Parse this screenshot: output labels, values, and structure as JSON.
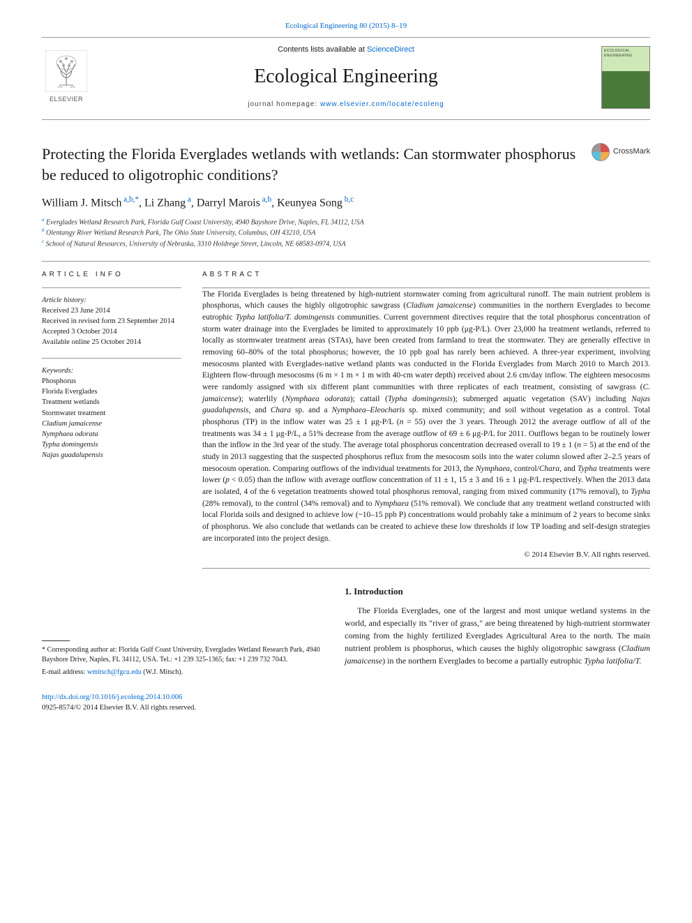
{
  "journal_ref": "Ecological Engineering 80 (2015) 8–19",
  "masthead": {
    "contents_prefix": "Contents lists available at ",
    "contents_link": "ScienceDirect",
    "journal_title": "Ecological Engineering",
    "homepage_prefix": "journal homepage: ",
    "homepage_url": "www.elsevier.com/locate/ecoleng",
    "publisher": "ELSEVIER",
    "cover_label_top": "ECOLOGICAL",
    "cover_label_bottom": "ENGINEERING"
  },
  "crossmark_label": "CrossMark",
  "article": {
    "title": "Protecting the Florida Everglades wetlands with wetlands: Can stormwater phosphorus be reduced to oligotrophic conditions?",
    "authors_html": "William J. Mitsch<sup> a,b,*</sup>, Li Zhang<sup> a</sup>, Darryl Marois<sup> a,b</sup>, Keunyea Song<sup> b,c</sup>",
    "affiliations": [
      {
        "marker": "a",
        "text": "Everglades Wetland Research Park, Florida Gulf Coast University, 4940 Bayshore Drive, Naples, FL 34112, USA"
      },
      {
        "marker": "b",
        "text": "Olentangy River Wetland Research Park, The Ohio State University, Columbus, OH 43210, USA"
      },
      {
        "marker": "c",
        "text": "School of Natural Resources, University of Nebraska, 3310 Holdrege Street, Lincoln, NE 68583-0974, USA"
      }
    ]
  },
  "info": {
    "heading": "ARTICLE INFO",
    "history_label": "Article history:",
    "history": [
      "Received 23 June 2014",
      "Received in revised form 23 September 2014",
      "Accepted 3 October 2014",
      "Available online 25 October 2014"
    ],
    "keywords_label": "Keywords:",
    "keywords": [
      "Phosphorus",
      "Florida Everglades",
      "Treatment wetlands",
      "Stormwater treatment",
      "Cladium jamaicense",
      "Nymphaea odorata",
      "Typha domingensis",
      "Najas guadalupensis"
    ]
  },
  "abstract": {
    "heading": "ABSTRACT",
    "body_html": "The Florida Everglades is being threatened by high-nutrient stormwater coming from agricultural runoff. The main nutrient problem is phosphorus, which causes the highly oligotrophic sawgrass (<em>Cladium jamaicense</em>) communities in the northern Everglades to become eutrophic <em>Typha latifolia/T. domingensis</em> communities. Current government directives require that the total phosphorus concentration of storm water drainage into the Everglades be limited to approximately 10 ppb (μg-P/L). Over 23,000 ha treatment wetlands, referred to locally as stormwater treatment areas (STAs), have been created from farmland to treat the stormwater. They are generally effective in removing 60–80% of the total phosphorus; however, the 10 ppb goal has rarely been achieved. A three-year experiment, involving mesocosms planted with Everglades-native wetland plants was conducted in the Florida Everglades from March 2010 to March 2013. Eighteen flow-through mesocosms (6 m × 1 m × 1 m with 40-cm water depth) received about 2.6 cm/day inflow. The eighteen mesocosms were randomly assigned with six different plant communities with three replicates of each treatment, consisting of sawgrass (<em>C. jamaicense</em>); waterlily (<em>Nymphaea odorata</em>); cattail (<em>Typha domingensis</em>); submerged aquatic vegetation (SAV) including <em>Najas guadalupensis</em>, and <em>Chara</em> sp. and a <em>Nymphaea–Eleocharis</em> sp. mixed community; and soil without vegetation as a control. Total phosphorus (TP) in the inflow water was 25 ± 1 μg-P/L (<em>n</em> = 55) over the 3 years. Through 2012 the average outflow of all of the treatments was 34 ± 1 μg-P/L, a 51% decrease from the average outflow of 69 ± 6 μg-P/L for 2011. Outflows began to be routinely lower than the inflow in the 3rd year of the study. The average total phosphorus concentration decreased overall to 19 ± 1 (<em>n</em> = 5) at the end of the study in 2013 suggesting that the suspected phosphorus reflux from the mesocosm soils into the water column slowed after 2–2.5 years of mesocosm operation. Comparing outflows of the individual treatments for 2013, the <em>Nymphaea</em>, control/<em>Chara</em>, and <em>Typha</em> treatments were lower (<em>p</em> < 0.05) than the inflow with average outflow concentration of 11 ± 1, 15 ± 3 and 16 ± 1 μg-P/L respectively. When the 2013 data are isolated, 4 of the 6 vegetation treatments showed total phosphorus removal, ranging from mixed community (17% removal), to <em>Typha</em> (28% removal), to the control (34% removal) and to <em>Nymphaea</em> (51% removal). We conclude that any treatment wetland constructed with local Florida soils and designed to achieve low (~10–15 ppb P) concentrations would probably take a minimum of 2 years to become sinks of phosphorus. We also conclude that wetlands can be created to achieve these low thresholds if low TP loading and self-design strategies are incorporated into the project design.",
    "copyright": "© 2014 Elsevier B.V. All rights reserved."
  },
  "corresponding": {
    "text": "* Corresponding author at: Florida Gulf Coast University, Everglades Wetland Research Park, 4940 Bayshore Drive, Naples, FL 34112, USA. Tel.: +1 239 325-1365; fax: +1 239 732 7043.",
    "email_label": "E-mail address:",
    "email": "wmitsch@fgcu.edu",
    "email_who": "(W.J. Mitsch)."
  },
  "intro": {
    "heading": "1. Introduction",
    "body_html": "The Florida Everglades, one of the largest and most unique wetland systems in the world, and especially its \"river of grass,\" are being threatened by high-nutrient stormwater coming from the highly fertilized Everglades Agricultural Area to the north. The main nutrient problem is phosphorus, which causes the highly oligotrophic sawgrass (<em>Cladium jamaicense</em>) in the northern Everglades to become a partially eutrophic <em>Typha latifolia/T.</em>"
  },
  "footer": {
    "doi": "http://dx.doi.org/10.1016/j.ecoleng.2014.10.006",
    "issn_line": "0925-8574/© 2014 Elsevier B.V. All rights reserved."
  },
  "colors": {
    "link": "#0066cc",
    "text": "#1a1a1a",
    "rule": "#999999"
  }
}
